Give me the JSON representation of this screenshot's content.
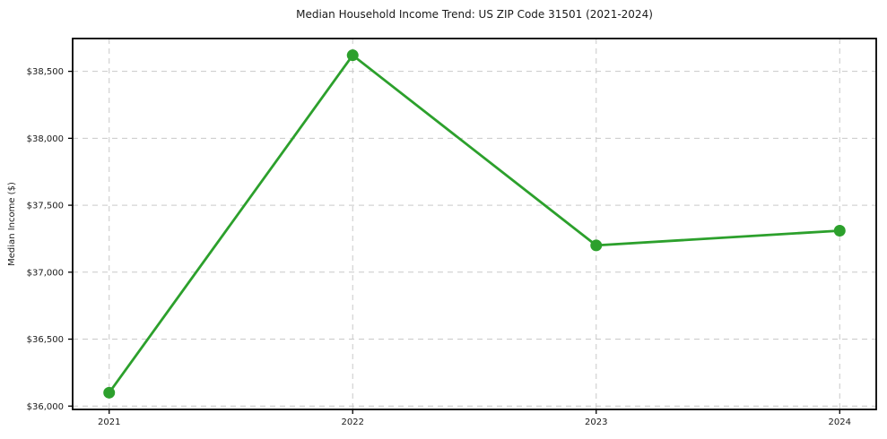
{
  "chart_data": {
    "type": "line",
    "title": "Median Household Income Trend: US ZIP Code 31501 (2021-2024)",
    "xlabel": "",
    "ylabel": "Median Income ($)",
    "categories": [
      "2021",
      "2022",
      "2023",
      "2024"
    ],
    "x": [
      2021,
      2022,
      2023,
      2024
    ],
    "series": [
      {
        "name": "Median Household Income",
        "values": [
          36100,
          38620,
          37200,
          37310
        ]
      }
    ],
    "yticks": [
      36000,
      36500,
      37000,
      37500,
      38000,
      38500
    ],
    "ytick_labels": [
      "$36,000",
      "$36,500",
      "$37,000",
      "$37,500",
      "$38,000",
      "$38,500"
    ],
    "ylim": [
      35975,
      38745
    ],
    "xlim": [
      2020.85,
      2024.15
    ],
    "grid": true,
    "grid_style": "dashed",
    "legend": "none",
    "line_color": "#2ca02c",
    "marker": "circle",
    "marker_color": "#2ca02c",
    "background_color": "#ffffff",
    "grid_color": "#c9c9c9",
    "spine_color": "#000000",
    "text_color": "#1a1a1a"
  }
}
